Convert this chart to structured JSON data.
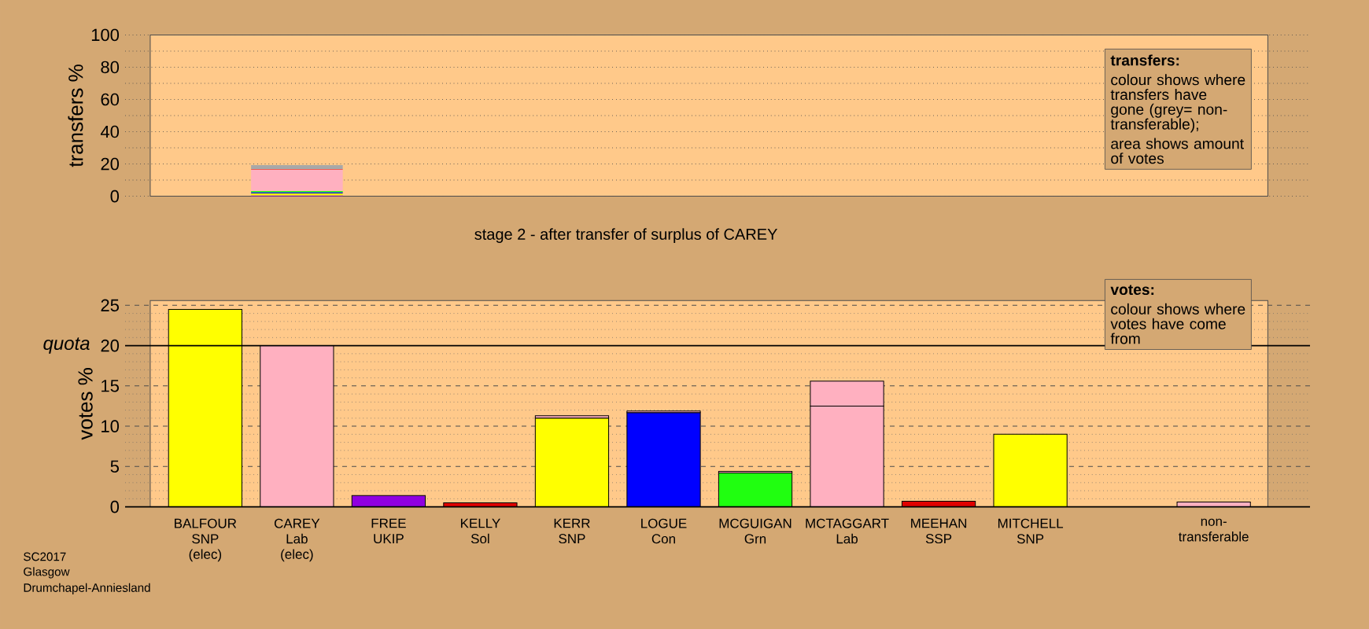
{
  "chart_data": [
    {
      "type": "bar",
      "stacked": true,
      "ylabel": "transfers %",
      "series": [
        {
          "color": "#9000e0",
          "values": [
            null,
            0.5,
            null,
            null,
            null,
            null,
            null,
            null,
            null,
            null,
            null,
            null
          ]
        },
        {
          "color": "#ffff00",
          "values": [
            null,
            1.3,
            null,
            null,
            null,
            null,
            null,
            null,
            null,
            null,
            null,
            null
          ]
        },
        {
          "color": "#0000ff",
          "values": [
            null,
            0.7,
            null,
            null,
            null,
            null,
            null,
            null,
            null,
            null,
            null,
            null
          ]
        },
        {
          "color": "#20ff10",
          "values": [
            null,
            0.7,
            null,
            null,
            null,
            null,
            null,
            null,
            null,
            null,
            null,
            null
          ]
        },
        {
          "color": "#ffb0c0",
          "values": [
            null,
            13.4,
            null,
            null,
            null,
            null,
            null,
            null,
            null,
            null,
            null,
            null
          ]
        },
        {
          "color": "#e00000",
          "values": [
            null,
            0.3,
            null,
            null,
            null,
            null,
            null,
            null,
            null,
            null,
            null,
            null
          ]
        },
        {
          "color": "#a8a8a8",
          "values": [
            null,
            2.4,
            null,
            null,
            null,
            null,
            null,
            null,
            null,
            null,
            null,
            null
          ]
        }
      ],
      "ylim": [
        0,
        100
      ],
      "yticks": [
        0,
        {
          "value": 10,
          "label": null
        },
        20,
        {
          "value": 30,
          "label": null
        },
        40,
        {
          "value": 50,
          "label": null
        },
        60,
        {
          "value": 70,
          "label": null
        },
        80,
        {
          "value": 90,
          "label": null
        },
        100
      ],
      "grid": "y",
      "tick_labels": "y",
      "annotations": [
        "transfers:",
        "colour shows where transfers have gone (grey= non-transferable);",
        "area shows amount of votes"
      ]
    },
    {
      "type": "bar",
      "stacked": true,
      "title": "stage 2 - after transfer of surplus of CAREY",
      "ylabel": "votes %",
      "categories": [
        "BALFOUR SNP (elec)",
        "CAREY Lab (elec)",
        "FREE UKIP",
        "KELLY Sol",
        "KERR SNP",
        "LOGUE Con",
        "MCGUIGAN Grn",
        "MCTAGGART Lab",
        "MEEHAN SSP",
        "MITCHELL SNP",
        null,
        "non-transferable"
      ],
      "series": [
        {
          "colors": [
            "#ffff00",
            "#ffb0c0",
            "#9000e0",
            "#e00000",
            "#ffff00",
            "#0000ff",
            "#20ff10",
            "#ffb0c0",
            "#e00000",
            "#ffff00",
            null,
            null
          ],
          "values": [
            24.5,
            20.0,
            1.4,
            0.5,
            11.0,
            11.7,
            4.2,
            12.5,
            0.7,
            9.0,
            null,
            null
          ]
        },
        {
          "color": "#ffb0c0",
          "values": [
            null,
            null,
            null,
            null,
            0.3,
            0.2,
            0.2,
            3.1,
            null,
            null,
            null,
            0.6
          ]
        }
      ],
      "ylim": [
        0,
        25.6
      ],
      "yticks": [
        0,
        5,
        10,
        15,
        20,
        25
      ],
      "grid": "y",
      "ref_lines": [
        {
          "axis": "y",
          "value": 20,
          "label": "quota"
        }
      ],
      "annotations": [
        "votes:",
        "colour shows where votes have come from",
        "SC2017",
        "Glasgow",
        "Drumchapel-Anniesland"
      ]
    }
  ]
}
